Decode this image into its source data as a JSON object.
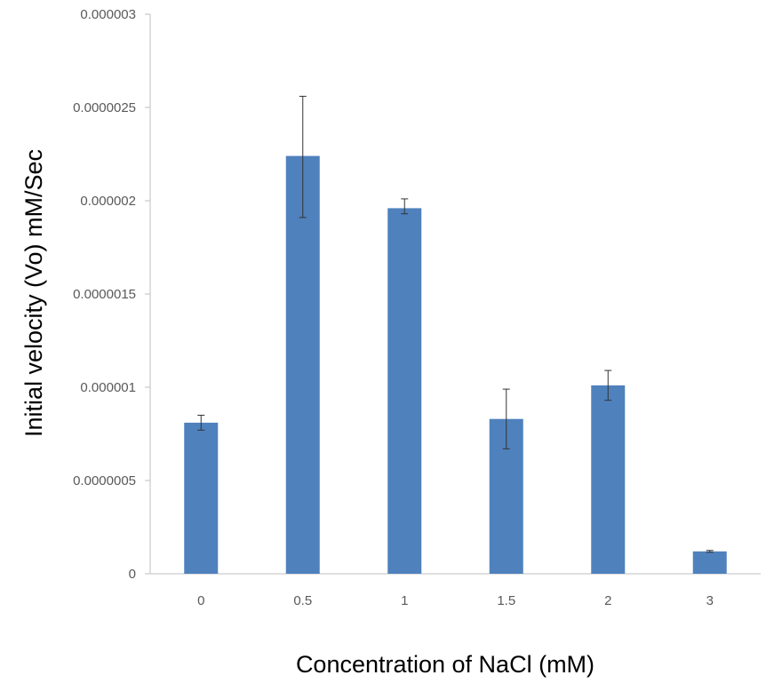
{
  "colors": {
    "bar": "#4f81bd",
    "axis": "#bfbfbf",
    "error_bar": "#333333"
  },
  "chart_data": {
    "type": "bar",
    "title": "",
    "xlabel": "Concentration of NaCl (mM)",
    "ylabel": "Initial velocity (Vo) mM/Sec",
    "categories": [
      "0",
      "0.5",
      "1",
      "1.5",
      "2",
      "3"
    ],
    "series": [
      {
        "values": [
          8.1e-07,
          2.24e-06,
          1.96e-06,
          8.3e-07,
          1.01e-06,
          1.2e-07
        ],
        "error_lower": [
          7.7e-07,
          1.91e-06,
          1.93e-06,
          6.7e-07,
          9.3e-07,
          1.15e-07
        ],
        "error_upper": [
          8.5e-07,
          2.56e-06,
          2.01e-06,
          9.9e-07,
          1.09e-06,
          1.25e-07
        ]
      }
    ],
    "ylim": [
      0,
      3e-06
    ],
    "yticks": [
      0,
      5e-07,
      1e-06,
      1.5e-06,
      2e-06,
      2.5e-06,
      3e-06
    ],
    "ytick_labels": [
      "0",
      "0.0000005",
      "0.000001",
      "0.0000015",
      "0.000002",
      "0.0000025",
      "0.000003"
    ],
    "grid": false,
    "legend": "none"
  }
}
